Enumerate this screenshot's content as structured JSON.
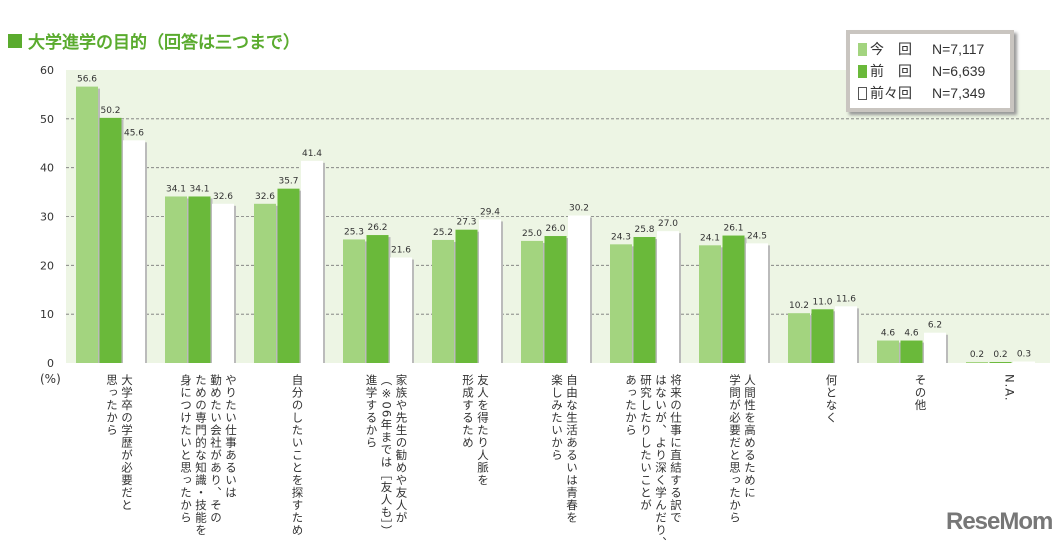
{
  "title": "大学進学の目的（回答は三つまで）",
  "legend": [
    {
      "label": "今　回",
      "n": "N=7,117",
      "color": "#a3d47f"
    },
    {
      "label": "前　回",
      "n": "N=6,639",
      "color": "#6ab93a"
    },
    {
      "label": "前々回",
      "n": "N=7,349",
      "color": "#ffffff"
    }
  ],
  "logo": "ReseMom",
  "chart_data": {
    "type": "bar",
    "title": "大学進学の目的（回答は三つまで）",
    "ylabel": "(%)",
    "ylim": [
      0,
      60
    ],
    "yticks": [
      "0",
      "10",
      "20",
      "30",
      "40",
      "50",
      "60"
    ],
    "grid": true,
    "legend_position": "top-right",
    "categories": [
      [
        "大学卒の学歴が必要だと",
        "思ったから"
      ],
      [
        "やりたい仕事あるいは",
        "勤めたい会社があり、その",
        "ための専門的な知識・技能を",
        "身につけたいと思ったから"
      ],
      [
        "自分のしたいことを探すため"
      ],
      [
        "家族や先生の勧めや友人が",
        "（※06年までは［友人も］）",
        "進学するから"
      ],
      [
        "友人を得たり人脈を",
        "形成するため"
      ],
      [
        "自由な生活あるいは青春を",
        "楽しみたいから"
      ],
      [
        "将来の仕事に直結する訳で",
        "はないが、より深く学んだり、",
        "研究したりしたいことが",
        "あったから"
      ],
      [
        "人間性を高めるために",
        "学問が必要だと思ったから"
      ],
      [
        "何となく"
      ],
      [
        "その他"
      ],
      [
        "N.A."
      ]
    ],
    "series": [
      {
        "name": "今　回",
        "values": [
          56.6,
          34.1,
          32.6,
          25.3,
          25.2,
          25.0,
          24.3,
          24.1,
          10.2,
          4.6,
          0.2
        ]
      },
      {
        "name": "前　回",
        "values": [
          50.2,
          34.1,
          35.7,
          26.2,
          27.3,
          26.0,
          25.8,
          26.1,
          11.0,
          4.6,
          0.2
        ]
      },
      {
        "name": "前々回",
        "values": [
          45.6,
          32.6,
          41.4,
          21.6,
          29.4,
          30.2,
          27.0,
          24.5,
          11.6,
          6.2,
          0.3
        ]
      }
    ]
  }
}
